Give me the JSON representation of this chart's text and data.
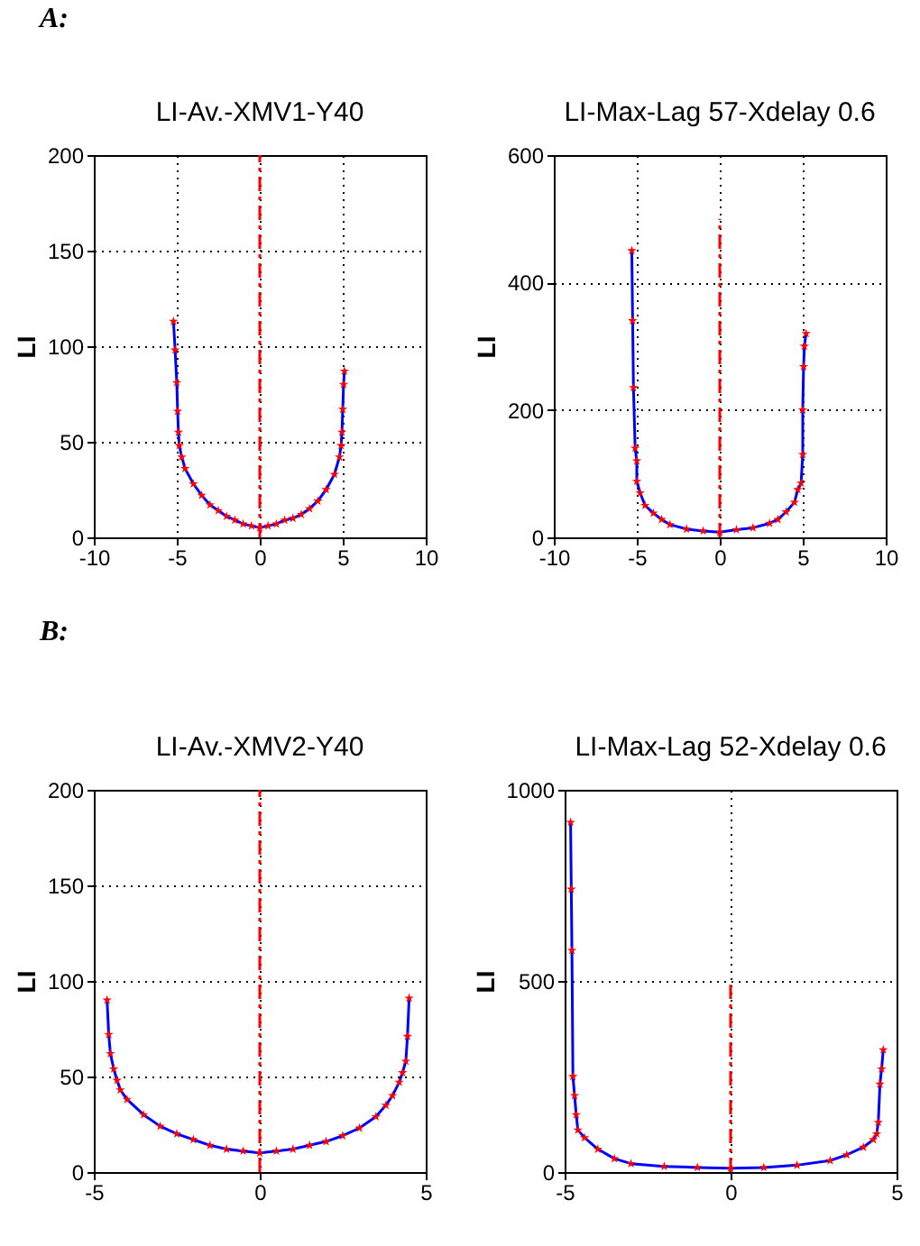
{
  "chart_data": [
    {
      "type": "line",
      "title": "LI-Av.-XMV1-Y40",
      "ylabel": "LI",
      "annotations": [
        "A:"
      ],
      "xlim": [
        -10,
        10
      ],
      "xticks": [
        -10,
        -5,
        0,
        5,
        10
      ],
      "ylim": [
        0,
        200
      ],
      "yticks": [
        0,
        50,
        100,
        150,
        200
      ],
      "grid": true,
      "series": [
        {
          "type": "line",
          "color": "#0000ff",
          "x": [
            -5.2,
            -5.1,
            -5.0,
            -4.95,
            -4.9,
            -4.85,
            -4.7,
            -4.5,
            -4,
            -3.5,
            -3,
            -2.5,
            -2,
            -1.5,
            -1,
            -0.5,
            0,
            0.5,
            1,
            1.5,
            2,
            2.5,
            3,
            3.5,
            4,
            4.5,
            4.8,
            4.9,
            4.95,
            5.0,
            5.05,
            5.1
          ],
          "values": [
            113,
            98,
            81,
            66,
            55,
            48,
            42,
            36,
            28,
            22,
            17,
            14,
            11,
            9,
            7,
            6,
            5,
            6,
            7,
            9,
            10,
            12,
            15,
            19,
            25,
            33,
            42,
            48,
            55,
            67,
            80,
            87
          ]
        },
        {
          "type": "scatter",
          "color": "#ff0000",
          "marker": "star",
          "x": [
            -5.2,
            -5.1,
            -5.0,
            -4.95,
            -4.9,
            -4.85,
            -4.7,
            -4.5,
            -4,
            -3.5,
            -3,
            -2.5,
            -2,
            -1.5,
            -1,
            -0.5,
            0,
            0.5,
            1,
            1.5,
            2,
            2.5,
            3,
            3.5,
            4,
            4.5,
            4.8,
            4.9,
            4.95,
            5.0,
            5.05,
            5.1
          ],
          "values": [
            113,
            98,
            81,
            66,
            55,
            48,
            42,
            36,
            28,
            22,
            17,
            14,
            11,
            9,
            7,
            6,
            5,
            6,
            7,
            9,
            10,
            12,
            15,
            19,
            25,
            33,
            42,
            48,
            55,
            67,
            80,
            87
          ]
        },
        {
          "type": "line",
          "color": "#ff0000",
          "line_style": "dashed",
          "x": [
            0,
            0
          ],
          "values": [
            0,
            200
          ]
        }
      ]
    },
    {
      "type": "line",
      "title": "LI-Max-Lag 57-Xdelay 0.6",
      "ylabel": "LI",
      "xlim": [
        -10,
        10
      ],
      "xticks": [
        -10,
        -5,
        0,
        5,
        10
      ],
      "ylim": [
        0,
        600
      ],
      "yticks": [
        0,
        200,
        400,
        600
      ],
      "grid": true,
      "series": [
        {
          "type": "line",
          "color": "#0000ff",
          "x": [
            -5.3,
            -5.25,
            -5.2,
            -5.1,
            -5.0,
            -5.0,
            -4.8,
            -4.5,
            -4,
            -3.5,
            -3,
            -2,
            -1,
            0,
            1,
            2,
            3,
            3.5,
            4,
            4.5,
            4.7,
            4.9,
            5.0,
            5.0,
            5.05,
            5.1,
            5.2
          ],
          "values": [
            450,
            340,
            235,
            140,
            120,
            88,
            70,
            50,
            38,
            28,
            20,
            13,
            10,
            8,
            12,
            15,
            22,
            28,
            40,
            55,
            75,
            85,
            130,
            200,
            268,
            300,
            320
          ]
        },
        {
          "type": "scatter",
          "color": "#ff0000",
          "marker": "star",
          "x": [
            -5.3,
            -5.25,
            -5.2,
            -5.1,
            -5.0,
            -5.0,
            -4.8,
            -4.5,
            -4,
            -3.5,
            -3,
            -2,
            -1,
            0,
            1,
            2,
            3,
            3.5,
            4,
            4.5,
            4.7,
            4.9,
            5.0,
            5.0,
            5.05,
            5.1,
            5.2
          ],
          "values": [
            450,
            340,
            235,
            140,
            120,
            88,
            70,
            50,
            38,
            28,
            20,
            13,
            10,
            8,
            12,
            15,
            22,
            28,
            40,
            55,
            75,
            85,
            130,
            200,
            268,
            300,
            320
          ]
        },
        {
          "type": "line",
          "color": "#ff0000",
          "line_style": "dashed",
          "x": [
            0,
            0
          ],
          "values": [
            0,
            500
          ]
        }
      ]
    },
    {
      "type": "line",
      "title": "LI-Av.-XMV2-Y40",
      "ylabel": "LI",
      "annotations": [
        "B:"
      ],
      "xlim": [
        -5,
        5
      ],
      "xticks": [
        -5,
        0,
        5
      ],
      "ylim": [
        0,
        200
      ],
      "yticks": [
        0,
        50,
        100,
        150,
        200
      ],
      "grid": true,
      "series": [
        {
          "type": "line",
          "color": "#0000ff",
          "x": [
            -4.6,
            -4.55,
            -4.5,
            -4.4,
            -4.3,
            -4.2,
            -4,
            -3.5,
            -3,
            -2.5,
            -2,
            -1.5,
            -1,
            -0.5,
            0,
            0.5,
            1,
            1.5,
            2,
            2.5,
            3,
            3.5,
            3.8,
            4.0,
            4.2,
            4.3,
            4.4,
            4.45,
            4.5
          ],
          "values": [
            90,
            72,
            62,
            54,
            48,
            43,
            38,
            30,
            24,
            20,
            17,
            14,
            12,
            11,
            10,
            11,
            12,
            14,
            16,
            19,
            23,
            29,
            35,
            40,
            47,
            52,
            58,
            71,
            91
          ]
        },
        {
          "type": "scatter",
          "color": "#ff0000",
          "marker": "star",
          "x": [
            -4.6,
            -4.55,
            -4.5,
            -4.4,
            -4.3,
            -4.2,
            -4,
            -3.5,
            -3,
            -2.5,
            -2,
            -1.5,
            -1,
            -0.5,
            0,
            0.5,
            1,
            1.5,
            2,
            2.5,
            3,
            3.5,
            3.8,
            4.0,
            4.2,
            4.3,
            4.4,
            4.45,
            4.5
          ],
          "values": [
            90,
            72,
            62,
            54,
            48,
            43,
            38,
            30,
            24,
            20,
            17,
            14,
            12,
            11,
            10,
            11,
            12,
            14,
            16,
            19,
            23,
            29,
            35,
            40,
            47,
            52,
            58,
            71,
            91
          ]
        },
        {
          "type": "line",
          "color": "#ff0000",
          "line_style": "dashed",
          "x": [
            0,
            0
          ],
          "values": [
            0,
            200
          ]
        }
      ]
    },
    {
      "type": "line",
      "title": "LI-Max-Lag 52-Xdelay 0.6",
      "ylabel": "LI",
      "xlim": [
        -5,
        5
      ],
      "xticks": [
        -5,
        0,
        5
      ],
      "ylim": [
        0,
        1000
      ],
      "yticks": [
        0,
        500,
        1000
      ],
      "grid": true,
      "series": [
        {
          "type": "line",
          "color": "#0000ff",
          "x": [
            -4.82,
            -4.8,
            -4.78,
            -4.75,
            -4.7,
            -4.65,
            -4.6,
            -4.4,
            -4,
            -3.5,
            -3,
            -2,
            -1,
            0,
            1,
            2,
            3,
            3.5,
            4,
            4.3,
            4.4,
            4.45,
            4.5,
            4.55,
            4.6
          ],
          "values": [
            915,
            740,
            580,
            250,
            200,
            150,
            110,
            90,
            60,
            35,
            22,
            15,
            12,
            10,
            12,
            18,
            30,
            45,
            65,
            85,
            100,
            130,
            230,
            270,
            320
          ]
        },
        {
          "type": "scatter",
          "color": "#ff0000",
          "marker": "star",
          "x": [
            -4.82,
            -4.8,
            -4.78,
            -4.75,
            -4.7,
            -4.65,
            -4.6,
            -4.4,
            -4,
            -3.5,
            -3,
            -2,
            -1,
            0,
            1,
            2,
            3,
            3.5,
            4,
            4.3,
            4.4,
            4.45,
            4.5,
            4.55,
            4.6
          ],
          "values": [
            915,
            740,
            580,
            250,
            200,
            150,
            110,
            90,
            60,
            35,
            22,
            15,
            12,
            10,
            12,
            18,
            30,
            45,
            65,
            85,
            100,
            130,
            230,
            270,
            320
          ]
        },
        {
          "type": "line",
          "color": "#ff0000",
          "line_style": "dashed",
          "x": [
            0,
            0
          ],
          "values": [
            0,
            490
          ]
        }
      ]
    }
  ]
}
